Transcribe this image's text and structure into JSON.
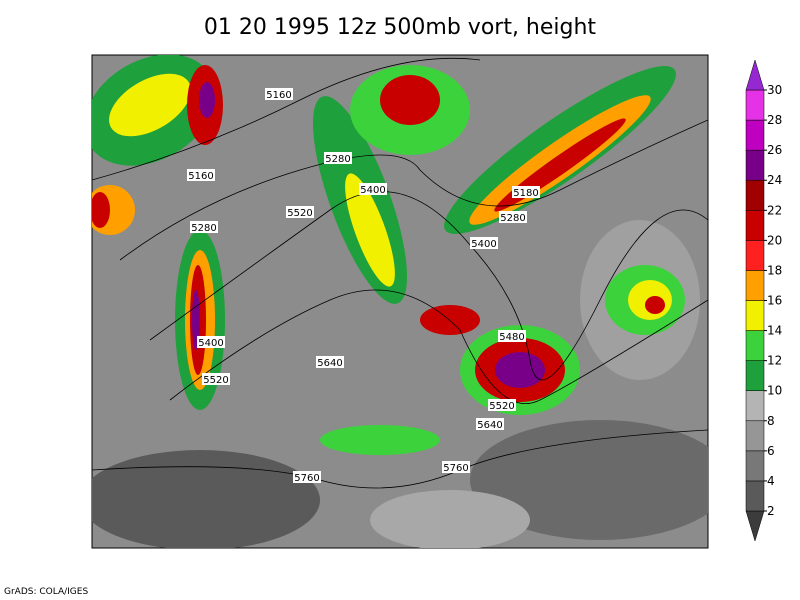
{
  "title": "01 20 1995 12z 500mb vort, height",
  "footer": "GrADS: COLA/IGES",
  "contour_labels": [
    5160,
    5280,
    5160,
    5400,
    5520,
    5280,
    5180,
    5280,
    5400,
    5480,
    5400,
    5640,
    5520,
    5520,
    5640,
    5760,
    5760
  ],
  "colorbar": {
    "levels": [
      2,
      4,
      6,
      8,
      10,
      12,
      14,
      16,
      18,
      20,
      22,
      24,
      26,
      28,
      30
    ],
    "colors": [
      "#3c3c3c",
      "#5a5a5a",
      "#787878",
      "#969696",
      "#b4b4b4",
      "#1ea03c",
      "#3cd23c",
      "#f0f000",
      "#ffa000",
      "#ff2020",
      "#c80000",
      "#a00000",
      "#780088",
      "#c000c0",
      "#e632e6",
      "#9628d2"
    ]
  }
}
